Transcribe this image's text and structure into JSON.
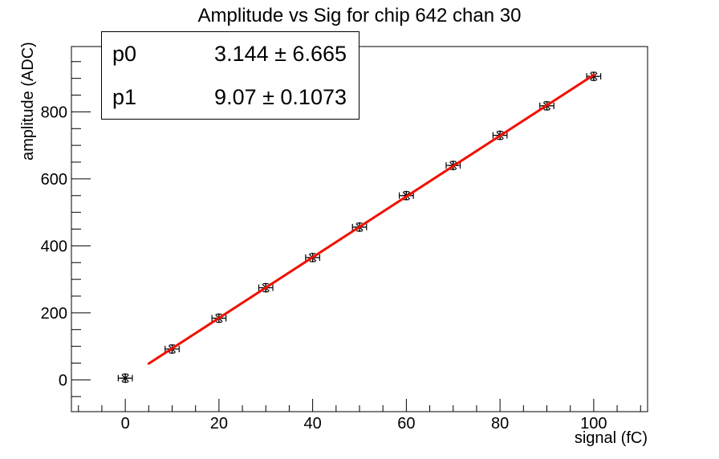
{
  "title": "Amplitude vs Sig for chip 642 chan 30",
  "stats_box": {
    "rows": [
      {
        "label": "p0",
        "value": "3.144 ± 6.665"
      },
      {
        "label": "p1",
        "value": "9.07 ± 0.1073"
      }
    ]
  },
  "chart_data": {
    "type": "scatter",
    "title": "Amplitude vs Sig for chip 642 chan 30",
    "xlabel": "signal (fC)",
    "ylabel": "amplitude (ADC)",
    "xlim": [
      -11.5,
      111.5
    ],
    "ylim": [
      -95,
      995
    ],
    "x_major_ticks": [
      0,
      20,
      40,
      60,
      80,
      100
    ],
    "x_minor_step": 5,
    "y_major_ticks": [
      0,
      200,
      400,
      600,
      800
    ],
    "y_minor_step": 50,
    "grid": false,
    "legend": null,
    "marker": "asterisk-8-point",
    "marker_color": "#000000",
    "points": {
      "x": [
        0,
        10,
        20,
        30,
        40,
        50,
        60,
        70,
        80,
        90,
        100
      ],
      "y": [
        5,
        92,
        184,
        275,
        365,
        456,
        550,
        640,
        730,
        818,
        906
      ],
      "x_err": 1.5,
      "y_err": 12
    },
    "fit": {
      "type": "linear",
      "p0": 3.144,
      "p1": 9.07,
      "x_range": [
        5,
        100
      ],
      "color": "#f21000",
      "line_width": 3
    }
  },
  "colors": {
    "background": "#ffffff",
    "axis": "#000000",
    "fit_line": "#f21000"
  }
}
